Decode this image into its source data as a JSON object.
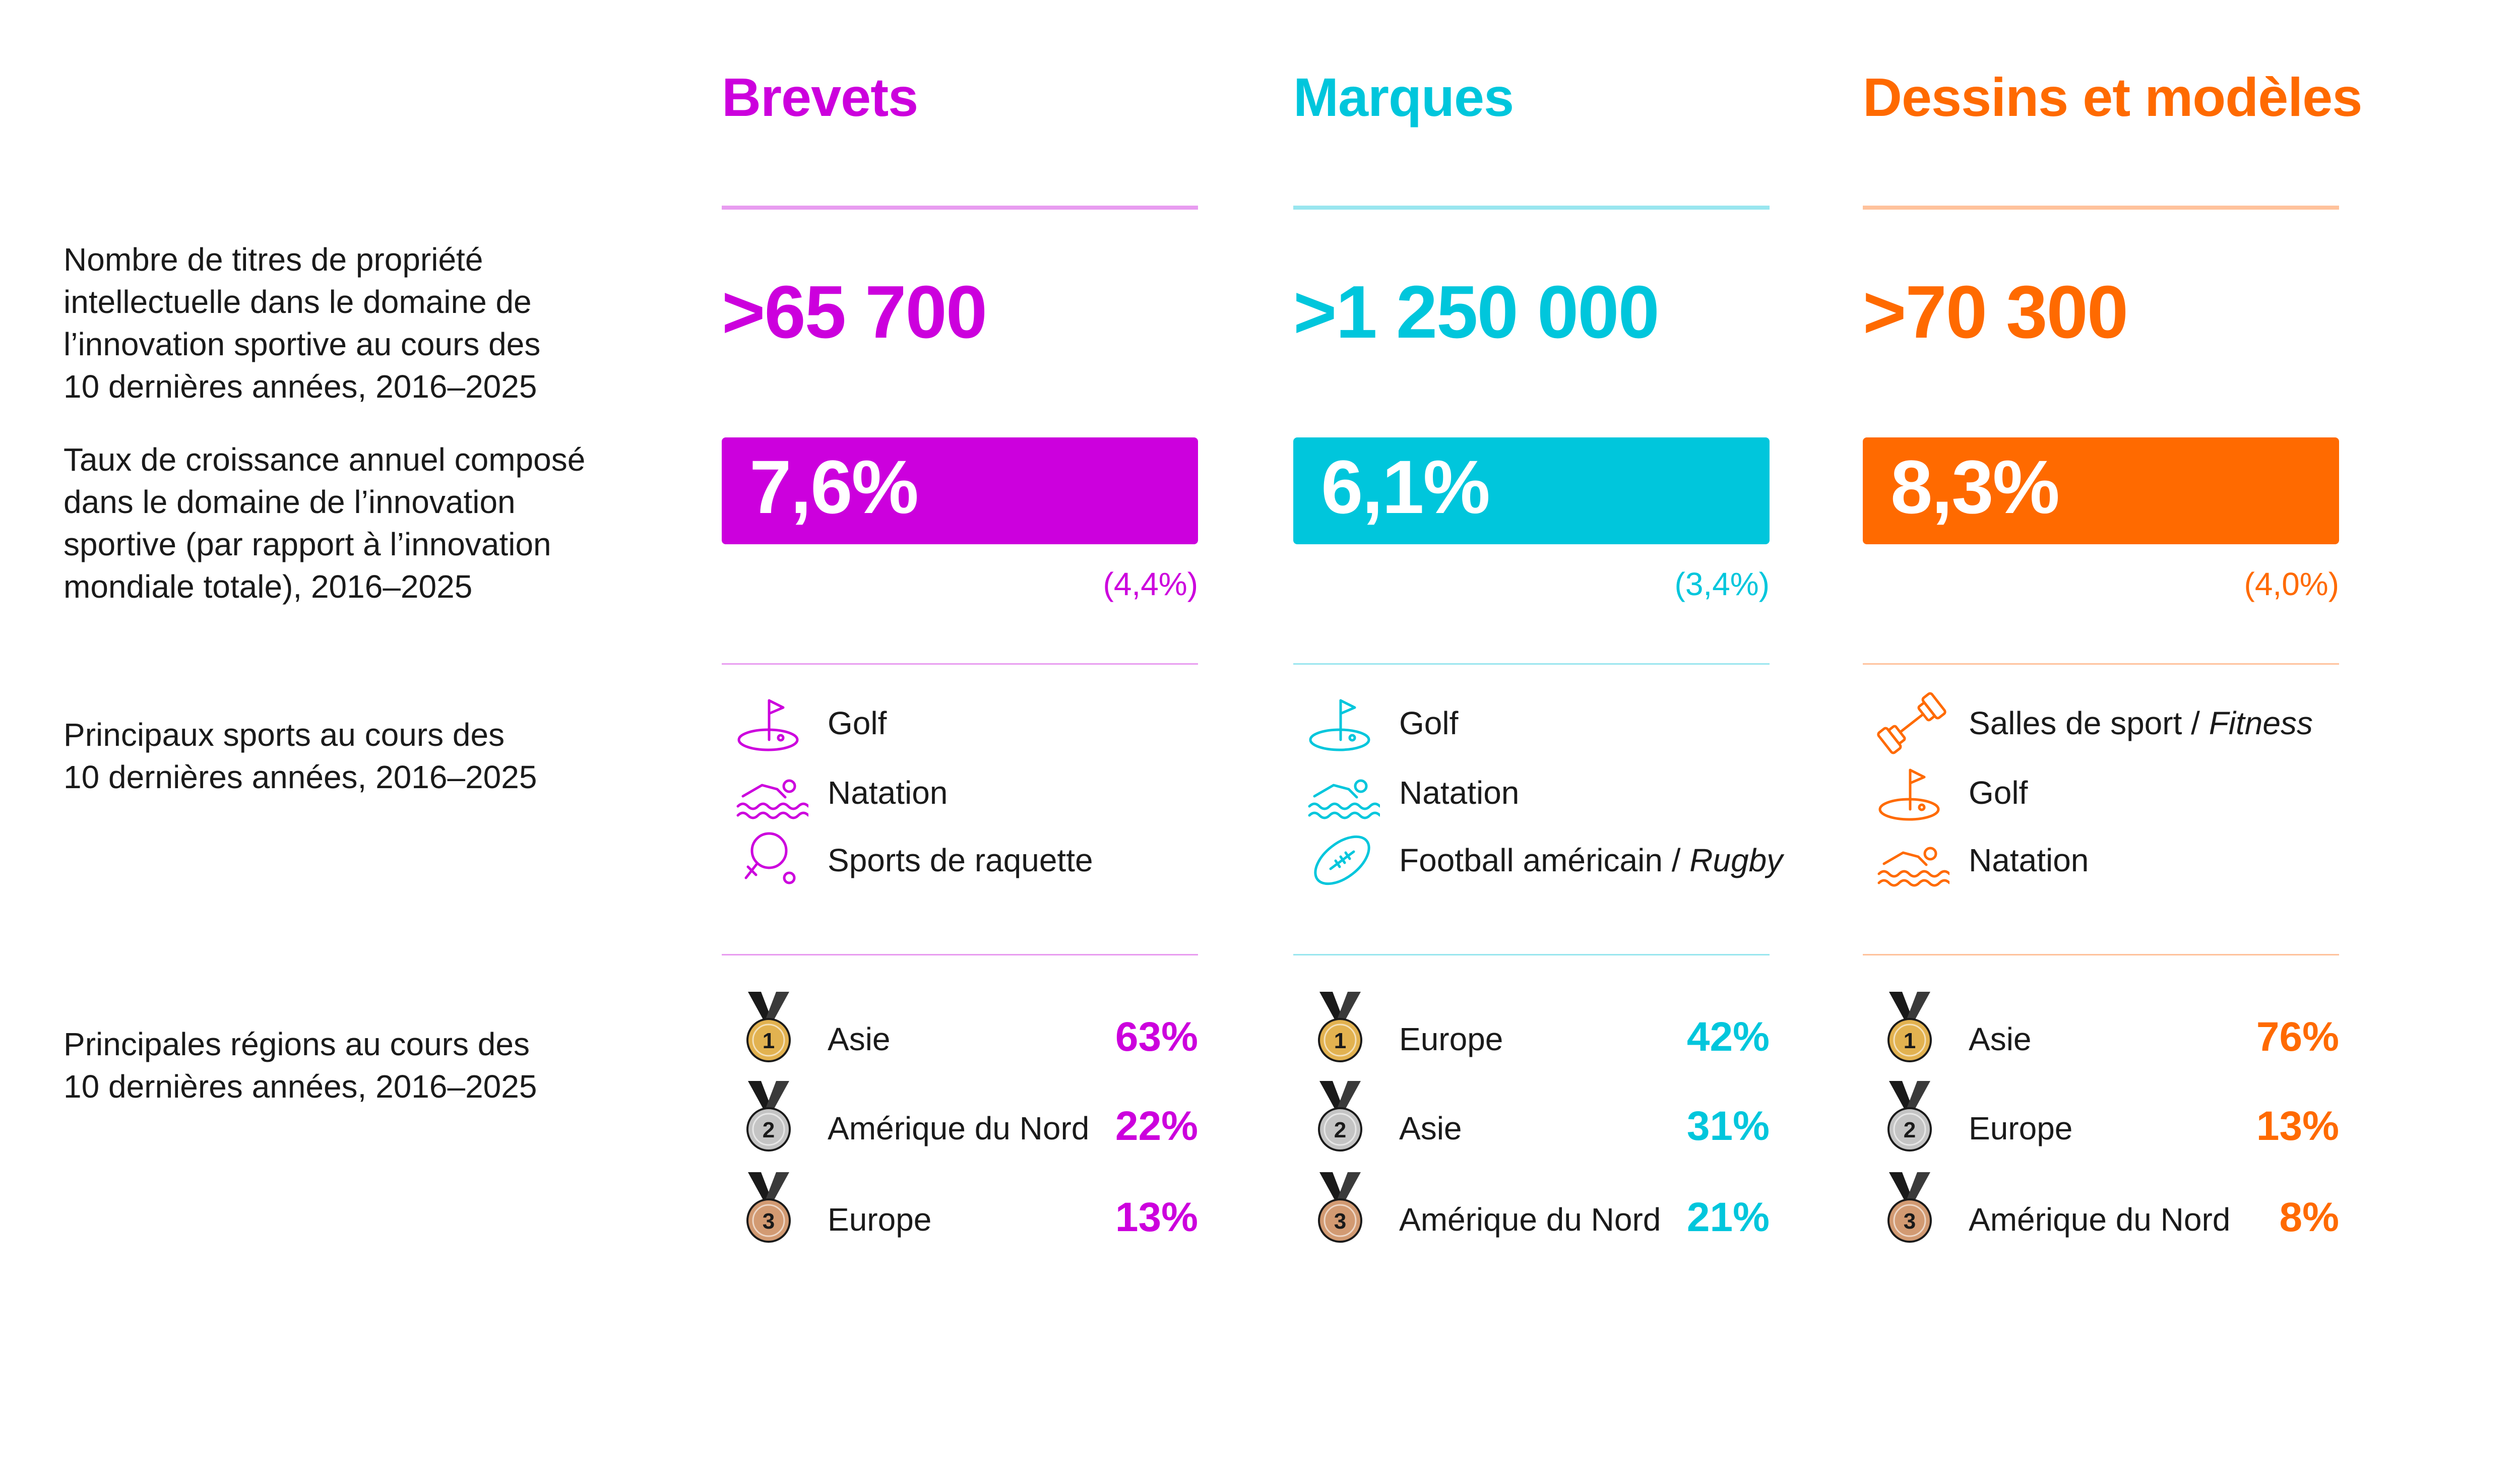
{
  "rows": {
    "count_label": "Nombre de titres de propriété intellectuelle dans le domaine de l’innovation sportive au cours des 10 dernières années, 2016–2025",
    "count_lines": [
      "Nombre de titres de propriété",
      "intellectuelle dans le domaine de",
      "l’innovation sportive au cours des",
      "10 dernières années, 2016–2025"
    ],
    "cagr_lines": [
      "Taux de croissance annuel composé",
      "dans le domaine de l’innovation",
      "sportive (par rapport à l’innovation",
      "mondiale totale), 2016–2025"
    ],
    "sports_lines": [
      "Principaux sports au cours des",
      "10 dernières années, 2016–2025"
    ],
    "regions_lines": [
      "Principales régions au cours des",
      "10 dernières années, 2016–2025"
    ]
  },
  "columns": [
    {
      "title": "Brevets",
      "color": "#cc00dd",
      "light": "#e89cf0",
      "count": ">65 700",
      "cagr": "7,6%",
      "cagr_total": "(4,4%)",
      "sports": [
        {
          "icon": "golf-icon",
          "label": "Golf",
          "italic": ""
        },
        {
          "icon": "swimming-icon",
          "label": "Natation",
          "italic": ""
        },
        {
          "icon": "racket-sports-icon",
          "label": "Sports de raquette",
          "italic": ""
        }
      ],
      "regions": [
        {
          "rank": "1",
          "label": "Asie",
          "pct": "63%"
        },
        {
          "rank": "2",
          "label": "Amérique du Nord",
          "pct": "22%"
        },
        {
          "rank": "3",
          "label": "Europe",
          "pct": "13%"
        }
      ]
    },
    {
      "title": "Marques",
      "color": "#00c6dc",
      "light": "#99e6ef",
      "count": ">1 250 000",
      "cagr": "6,1%",
      "cagr_total": "(3,4%)",
      "sports": [
        {
          "icon": "golf-icon",
          "label": "Golf",
          "italic": ""
        },
        {
          "icon": "swimming-icon",
          "label": "Natation",
          "italic": ""
        },
        {
          "icon": "football-icon",
          "label": "Football américain / ",
          "italic": "Rugby"
        }
      ],
      "regions": [
        {
          "rank": "1",
          "label": "Europe",
          "pct": "42%"
        },
        {
          "rank": "2",
          "label": "Asie",
          "pct": "31%"
        },
        {
          "rank": "3",
          "label": "Amérique du Nord",
          "pct": "21%"
        }
      ]
    },
    {
      "title": "Dessins et modèles",
      "color": "#ff6a00",
      "light": "#ffc29c",
      "count": ">70 300",
      "cagr": "8,3%",
      "cagr_total": "(4,0%)",
      "sports": [
        {
          "icon": "dumbbell-icon",
          "label": "Salles de sport / ",
          "italic": "Fitness"
        },
        {
          "icon": "golf-icon",
          "label": "Golf",
          "italic": ""
        },
        {
          "icon": "swimming-icon",
          "label": "Natation",
          "italic": ""
        }
      ],
      "regions": [
        {
          "rank": "1",
          "label": "Asie",
          "pct": "76%"
        },
        {
          "rank": "2",
          "label": "Europe",
          "pct": "13%"
        },
        {
          "rank": "3",
          "label": "Amérique du Nord",
          "pct": "8%"
        }
      ]
    }
  ],
  "medal_colors": {
    "1": "#e2b250",
    "2": "#c4c4c4",
    "3": "#d29a72"
  }
}
